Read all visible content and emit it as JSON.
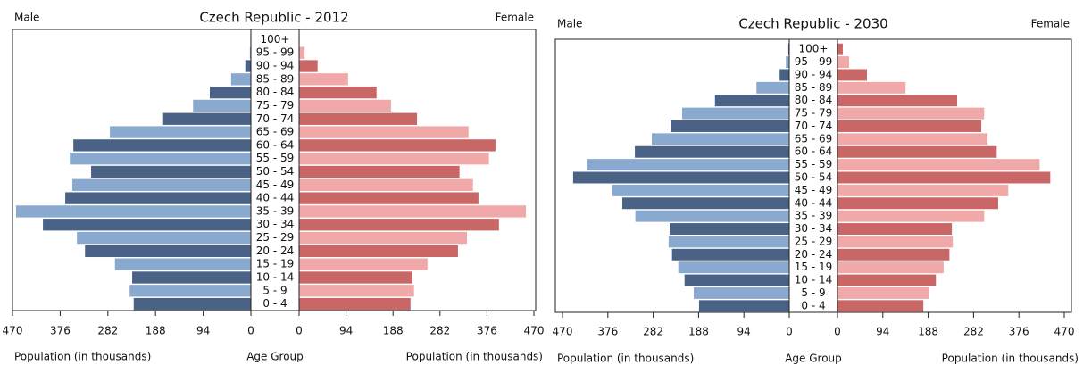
{
  "chart_data": [
    {
      "type": "pyramid",
      "title": "Czech Republic - 2012",
      "categories": [
        "100+",
        "95 - 99",
        "90 - 94",
        "85 - 89",
        "80 - 84",
        "75 - 79",
        "70 - 74",
        "65 - 69",
        "60 - 64",
        "55 - 59",
        "50 - 54",
        "45 - 49",
        "40 - 44",
        "35 - 39",
        "30 - 34",
        "25 - 29",
        "20 - 24",
        "15 - 19",
        "10 - 14",
        "5 - 9",
        "0 - 4"
      ],
      "series": [
        {
          "name": "Male",
          "color": [
            "#4a6286",
            "#8aa9cf"
          ],
          "values": [
            1,
            2,
            11,
            39,
            81,
            114,
            173,
            278,
            350,
            357,
            315,
            352,
            366,
            463,
            410,
            343,
            327,
            268,
            234,
            239,
            231
          ]
        },
        {
          "name": "Female",
          "color": [
            "#c96666",
            "#f0a8a8"
          ],
          "values": [
            1,
            11,
            37,
            98,
            155,
            184,
            236,
            339,
            393,
            380,
            321,
            348,
            359,
            454,
            400,
            336,
            318,
            257,
            227,
            230,
            223
          ]
        }
      ],
      "xlim": [
        0,
        470
      ],
      "xticks": [
        0,
        94,
        188,
        282,
        376,
        470
      ],
      "x_label": "Population (in thousands)",
      "center_label": "Age Group"
    },
    {
      "type": "pyramid",
      "title": "Czech Republic - 2030",
      "categories": [
        "100+",
        "95 - 99",
        "90 - 94",
        "85 - 89",
        "80 - 84",
        "75 - 79",
        "70 - 74",
        "65 - 69",
        "60 - 64",
        "55 - 59",
        "50 - 54",
        "45 - 49",
        "40 - 44",
        "35 - 39",
        "30 - 34",
        "25 - 29",
        "20 - 24",
        "15 - 19",
        "10 - 14",
        "5 - 9",
        "0 - 4"
      ],
      "series": [
        {
          "name": "Male",
          "color": [
            "#4a6286",
            "#8aa9cf"
          ],
          "values": [
            2,
            7,
            20,
            68,
            154,
            222,
            246,
            285,
            320,
            419,
            448,
            367,
            346,
            319,
            248,
            250,
            243,
            230,
            217,
            198,
            187
          ]
        },
        {
          "name": "Female",
          "color": [
            "#c96666",
            "#f0a8a8"
          ],
          "values": [
            11,
            24,
            61,
            141,
            248,
            304,
            298,
            311,
            330,
            419,
            441,
            354,
            333,
            304,
            237,
            239,
            232,
            220,
            204,
            189,
            178
          ]
        }
      ],
      "xlim": [
        0,
        470
      ],
      "xticks": [
        0,
        94,
        188,
        282,
        376,
        470
      ],
      "x_label": "Population (in thousands)",
      "center_label": "Age Group"
    }
  ]
}
